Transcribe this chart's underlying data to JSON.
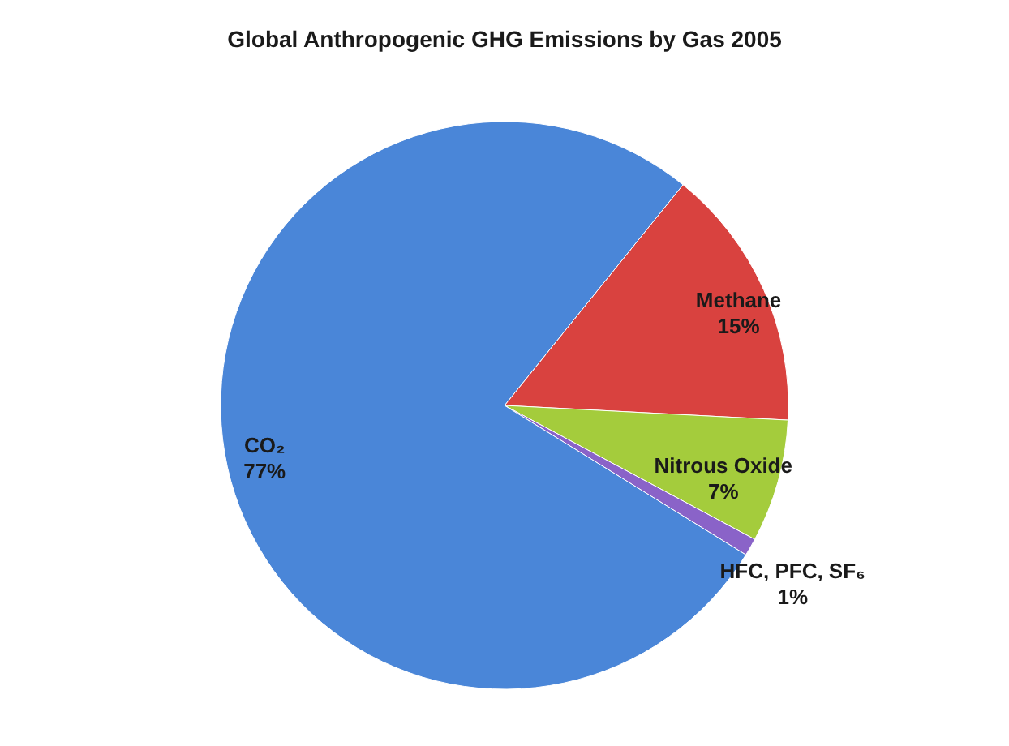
{
  "chart_data": {
    "type": "pie",
    "title": "Global Anthropogenic GHG Emissions by Gas 2005",
    "categories": [
      "Methane",
      "Nitrous Oxide",
      "HFC, PFC, SF₆",
      "CO₂"
    ],
    "values": [
      15,
      7,
      1,
      77
    ],
    "colors": [
      "#d9423f",
      "#a4cc3c",
      "#8a63c8",
      "#4a86d8"
    ],
    "value_labels": [
      "15%",
      "7%",
      "1%",
      "77%"
    ],
    "legend": false
  }
}
